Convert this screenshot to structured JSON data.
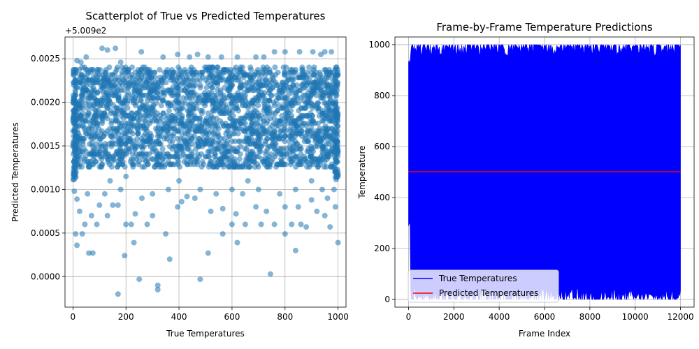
{
  "chart_data": [
    {
      "type": "scatter",
      "title": "Scatterplot of True vs Predicted Temperatures",
      "xlabel": "True Temperatures",
      "ylabel": "Predicted Temperatures",
      "offset_text": "+5.009e2",
      "xlim": [
        -30,
        1030
      ],
      "ylim": [
        -0.00035,
        0.00275
      ],
      "xticks": [
        0,
        200,
        400,
        600,
        800,
        1000
      ],
      "xtick_labels": [
        "0",
        "200",
        "400",
        "600",
        "800",
        "1000"
      ],
      "yticks": [
        0.0,
        0.0005,
        0.001,
        0.0015,
        0.002,
        0.0025
      ],
      "ytick_labels": [
        "0.0000",
        "0.0005",
        "0.0010",
        "0.0015",
        "0.0020",
        "0.0025"
      ],
      "grid": true,
      "color": "#1f77b4",
      "opacity": 0.55,
      "dense_region": {
        "x_range": [
          0,
          1000
        ],
        "y_range": [
          0.00125,
          0.0024
        ]
      },
      "sparse_points": [
        [
          170,
          -0.0002
        ],
        [
          320,
          -0.00015
        ],
        [
          320,
          -0.0001
        ],
        [
          250,
          -3e-05
        ],
        [
          480,
          -3e-05
        ],
        [
          745,
          3e-05
        ],
        [
          365,
          0.0002
        ],
        [
          195,
          0.00024
        ],
        [
          510,
          0.00027
        ],
        [
          60,
          0.00027
        ],
        [
          75,
          0.00027
        ],
        [
          840,
          0.0003
        ],
        [
          15,
          0.00036
        ],
        [
          620,
          0.00039
        ],
        [
          230,
          0.00039
        ],
        [
          1000,
          0.00039
        ],
        [
          35,
          0.00049
        ],
        [
          10,
          0.00049
        ],
        [
          200,
          0.0006
        ],
        [
          220,
          0.0006
        ],
        [
          280,
          0.0006
        ],
        [
          300,
          0.0007
        ],
        [
          45,
          0.0006
        ],
        [
          90,
          0.0006
        ],
        [
          130,
          0.0007
        ],
        [
          70,
          0.0007
        ],
        [
          350,
          0.00049
        ],
        [
          565,
          0.00049
        ],
        [
          800,
          0.00049
        ],
        [
          880,
          0.00057
        ],
        [
          970,
          0.00057
        ],
        [
          860,
          0.0006
        ],
        [
          825,
          0.0006
        ],
        [
          710,
          0.0006
        ],
        [
          650,
          0.0006
        ],
        [
          600,
          0.0006
        ],
        [
          760,
          0.0006
        ],
        [
          25,
          0.00075
        ],
        [
          100,
          0.00082
        ],
        [
          150,
          0.00082
        ],
        [
          170,
          0.00082
        ],
        [
          235,
          0.00072
        ],
        [
          395,
          0.0008
        ],
        [
          410,
          0.00086
        ],
        [
          460,
          0.0009
        ],
        [
          520,
          0.00075
        ],
        [
          565,
          0.00078
        ],
        [
          615,
          0.00072
        ],
        [
          690,
          0.0008
        ],
        [
          730,
          0.00075
        ],
        [
          800,
          0.0008
        ],
        [
          850,
          0.0008
        ],
        [
          920,
          0.00075
        ],
        [
          950,
          0.0007
        ],
        [
          990,
          0.0008
        ],
        [
          960,
          0.0009
        ],
        [
          900,
          0.00088
        ],
        [
          780,
          0.00095
        ],
        [
          640,
          0.00095
        ],
        [
          540,
          0.00095
        ],
        [
          430,
          0.00092
        ],
        [
          300,
          0.00095
        ],
        [
          260,
          0.0009
        ],
        [
          120,
          0.00095
        ],
        [
          55,
          0.00095
        ],
        [
          5,
          0.00098
        ],
        [
          15,
          0.00089
        ],
        [
          180,
          0.001
        ],
        [
          360,
          0.001
        ],
        [
          480,
          0.001
        ],
        [
          600,
          0.001
        ],
        [
          700,
          0.001
        ],
        [
          840,
          0.001
        ],
        [
          940,
          0.001
        ],
        [
          985,
          0.001
        ],
        [
          140,
          0.0011
        ],
        [
          400,
          0.0011
        ],
        [
          660,
          0.0011
        ],
        [
          900,
          0.0011
        ],
        [
          200,
          0.00115
        ],
        [
          1000,
          0.00115
        ],
        [
          110,
          0.00262
        ],
        [
          160,
          0.00262
        ],
        [
          130,
          0.0026
        ],
        [
          258,
          0.00258
        ],
        [
          395,
          0.00255
        ],
        [
          440,
          0.00252
        ],
        [
          470,
          0.00255
        ],
        [
          510,
          0.00252
        ],
        [
          620,
          0.00252
        ],
        [
          690,
          0.00252
        ],
        [
          760,
          0.00258
        ],
        [
          800,
          0.00258
        ],
        [
          855,
          0.00258
        ],
        [
          905,
          0.00258
        ],
        [
          935,
          0.00255
        ],
        [
          950,
          0.00258
        ],
        [
          975,
          0.00258
        ],
        [
          50,
          0.00252
        ],
        [
          15,
          0.00248
        ],
        [
          30,
          0.00246
        ],
        [
          180,
          0.00246
        ],
        [
          340,
          0.00252
        ],
        [
          560,
          0.00252
        ],
        [
          720,
          0.00252
        ]
      ]
    },
    {
      "type": "line",
      "title": "Frame-by-Frame Temperature Predictions",
      "xlabel": "Frame Index",
      "ylabel": "Temperature",
      "xlim": [
        -600,
        12600
      ],
      "ylim": [
        -30,
        1030
      ],
      "xticks": [
        0,
        2000,
        4000,
        6000,
        8000,
        10000,
        12000
      ],
      "xtick_labels": [
        "0",
        "2000",
        "4000",
        "6000",
        "8000",
        "10000",
        "12000"
      ],
      "yticks": [
        0,
        200,
        400,
        600,
        800,
        1000
      ],
      "ytick_labels": [
        "0",
        "200",
        "400",
        "600",
        "800",
        "1000"
      ],
      "grid": true,
      "legend_position": "lower-left",
      "frame_count": 12000,
      "series": [
        {
          "name": "True Temperatures",
          "color": "#0000ff",
          "value_range": [
            0,
            1000
          ]
        },
        {
          "name": "Predicted Temperatures",
          "color": "#ff0000",
          "value": 500.9
        }
      ]
    }
  ]
}
